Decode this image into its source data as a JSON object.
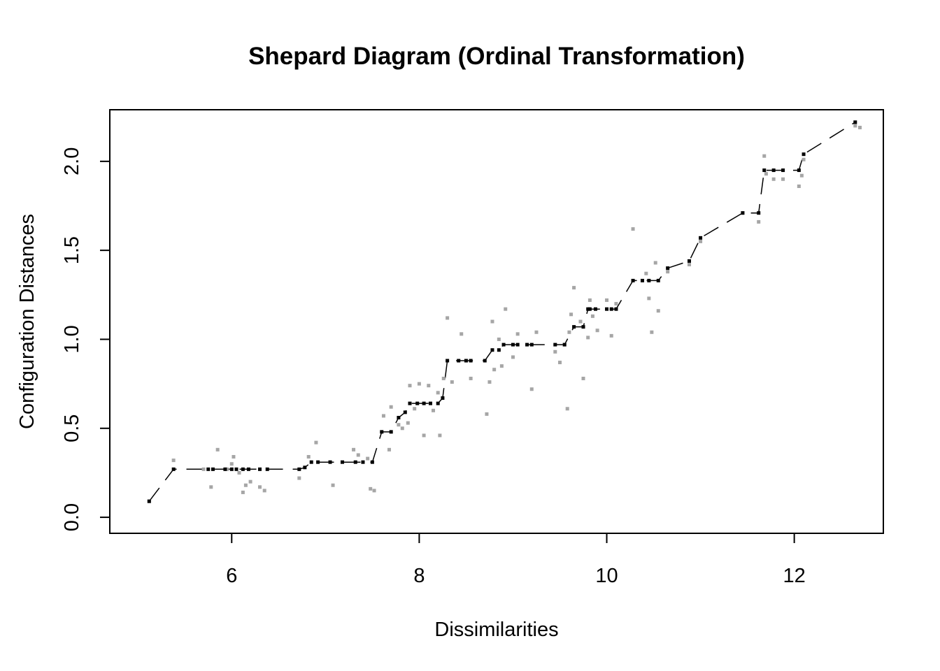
{
  "chart_data": {
    "type": "scatter",
    "title": "Shepard Diagram (Ordinal Transformation)",
    "xlabel": "Dissimilarities",
    "ylabel": "Configuration Distances",
    "xlim": [
      4.7,
      12.95
    ],
    "ylim": [
      -0.09,
      2.29
    ],
    "xticks": [
      6,
      8,
      10,
      12
    ],
    "xtick_labels": [
      "6",
      "8",
      "10",
      "12"
    ],
    "yticks": [
      0.0,
      0.5,
      1.0,
      1.5,
      2.0
    ],
    "ytick_labels": [
      "0.0",
      "0.5",
      "1.0",
      "1.5",
      "2.0"
    ],
    "grid": false,
    "legend": "none",
    "colors": {
      "observed": "#a6a6a6",
      "fitted": "#000000"
    },
    "observed_distances": {
      "x": [
        5.12,
        5.38,
        5.7,
        5.78,
        5.85,
        5.95,
        6.0,
        6.02,
        6.08,
        6.12,
        6.15,
        6.2,
        6.3,
        6.35,
        6.72,
        6.82,
        6.9,
        7.08,
        7.3,
        7.35,
        7.45,
        7.48,
        7.52,
        7.62,
        7.68,
        7.7,
        7.78,
        7.82,
        7.88,
        7.9,
        7.95,
        8.0,
        8.05,
        8.1,
        8.15,
        8.2,
        8.22,
        8.26,
        8.3,
        8.35,
        8.45,
        8.5,
        8.55,
        8.72,
        8.75,
        8.78,
        8.8,
        8.85,
        8.88,
        8.92,
        9.0,
        9.05,
        9.2,
        9.25,
        9.45,
        9.5,
        9.55,
        9.58,
        9.6,
        9.62,
        9.65,
        9.72,
        9.75,
        9.8,
        9.82,
        9.85,
        9.9,
        10.0,
        10.05,
        10.1,
        10.28,
        10.42,
        10.45,
        10.48,
        10.52,
        10.55,
        10.65,
        10.88,
        11.0,
        11.45,
        11.62,
        11.68,
        11.7,
        11.78,
        11.88,
        12.05,
        12.08,
        12.1,
        12.65,
        12.7
      ],
      "y": [
        0.09,
        0.32,
        0.27,
        0.17,
        0.38,
        0.27,
        0.3,
        0.34,
        0.25,
        0.14,
        0.18,
        0.2,
        0.17,
        0.15,
        0.22,
        0.34,
        0.42,
        0.18,
        0.38,
        0.35,
        0.33,
        0.16,
        0.15,
        0.57,
        0.38,
        0.62,
        0.52,
        0.5,
        0.53,
        0.74,
        0.61,
        0.75,
        0.46,
        0.74,
        0.6,
        0.7,
        0.46,
        0.78,
        1.12,
        0.76,
        1.03,
        0.88,
        0.78,
        0.58,
        0.76,
        1.1,
        0.83,
        1.0,
        0.85,
        1.17,
        0.9,
        1.03,
        0.72,
        1.04,
        0.93,
        0.87,
        0.97,
        0.61,
        1.04,
        1.14,
        1.29,
        1.1,
        0.78,
        1.01,
        1.22,
        1.13,
        1.05,
        1.22,
        1.02,
        1.2,
        1.62,
        1.37,
        1.23,
        1.04,
        1.43,
        1.16,
        1.38,
        1.42,
        1.55,
        1.71,
        1.66,
        2.03,
        1.93,
        1.9,
        1.9,
        1.86,
        1.92,
        2.01,
        2.2,
        2.19
      ]
    },
    "fitted_values": {
      "x": [
        5.12,
        5.38,
        5.75,
        5.8,
        5.93,
        6.0,
        6.05,
        6.12,
        6.18,
        6.3,
        6.38,
        6.72,
        6.78,
        6.85,
        6.92,
        7.05,
        7.18,
        7.32,
        7.4,
        7.5,
        7.6,
        7.7,
        7.78,
        7.85,
        7.9,
        7.98,
        8.05,
        8.12,
        8.2,
        8.25,
        8.3,
        8.42,
        8.5,
        8.55,
        8.7,
        8.78,
        8.85,
        8.9,
        9.0,
        9.05,
        9.15,
        9.2,
        9.45,
        9.55,
        9.65,
        9.75,
        9.8,
        9.82,
        9.88,
        10.0,
        10.05,
        10.1,
        10.28,
        10.38,
        10.45,
        10.55,
        10.65,
        10.88,
        11.0,
        11.45,
        11.62,
        11.68,
        11.78,
        11.88,
        12.05,
        12.1,
        12.65
      ],
      "y": [
        0.09,
        0.27,
        0.27,
        0.27,
        0.27,
        0.27,
        0.27,
        0.27,
        0.27,
        0.27,
        0.27,
        0.27,
        0.28,
        0.31,
        0.31,
        0.31,
        0.31,
        0.31,
        0.31,
        0.31,
        0.48,
        0.48,
        0.56,
        0.59,
        0.64,
        0.64,
        0.64,
        0.64,
        0.64,
        0.67,
        0.88,
        0.88,
        0.88,
        0.88,
        0.88,
        0.94,
        0.94,
        0.97,
        0.97,
        0.97,
        0.97,
        0.97,
        0.97,
        0.97,
        1.07,
        1.07,
        1.17,
        1.17,
        1.17,
        1.17,
        1.17,
        1.17,
        1.33,
        1.33,
        1.33,
        1.33,
        1.4,
        1.44,
        1.57,
        1.71,
        1.71,
        1.95,
        1.95,
        1.95,
        1.95,
        2.04,
        2.22
      ]
    }
  }
}
